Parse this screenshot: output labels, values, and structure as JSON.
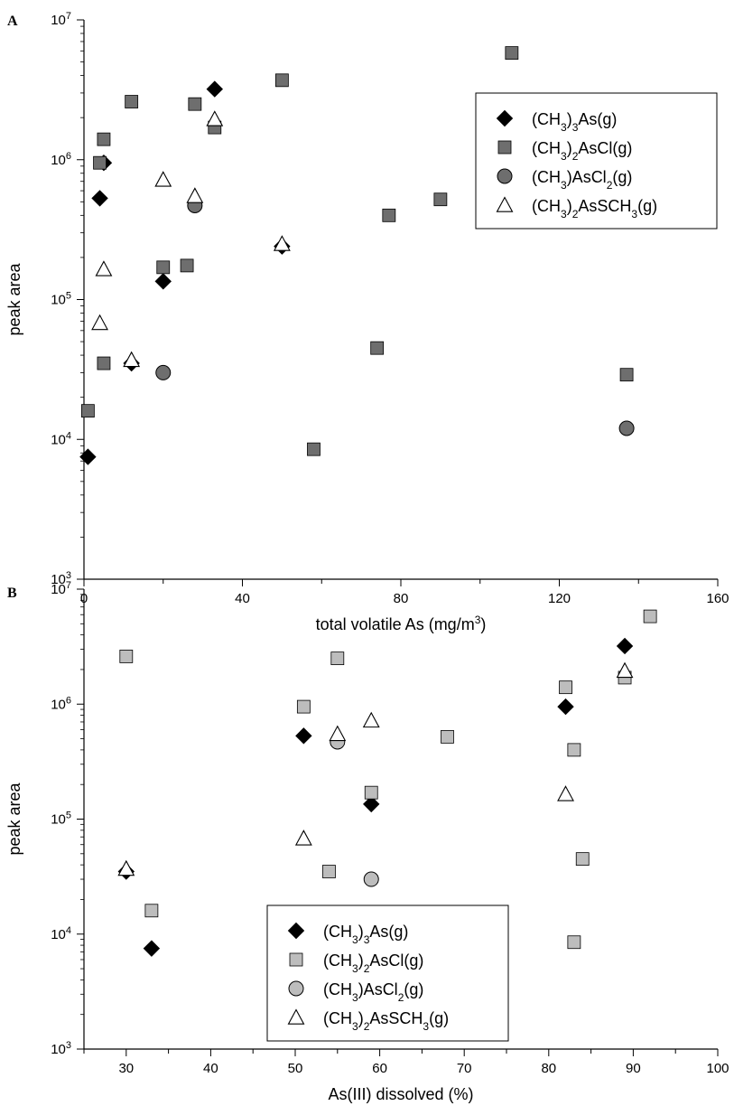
{
  "chart_data": [
    {
      "type": "scatter",
      "panel_label": "A",
      "xlabel": "total volatile As (mg/m",
      "xlabel_sup": "3",
      "xlabel_end": ")",
      "ylabel": "peak area",
      "x_scale": "linear",
      "y_scale": "log",
      "xlim": [
        0,
        160
      ],
      "ylim": [
        1000,
        10000000
      ],
      "x_ticks": [
        0,
        40,
        80,
        120,
        160
      ],
      "x_minor_step": 20,
      "y_tick_labels": [
        {
          "base": "10",
          "exp": "3"
        },
        {
          "base": "10",
          "exp": "4"
        },
        {
          "base": "10",
          "exp": "5"
        },
        {
          "base": "10",
          "exp": "6"
        },
        {
          "base": "10",
          "exp": "7"
        }
      ],
      "grid": false,
      "legend_position": "top-right",
      "series": [
        {
          "marker": "diamond",
          "color": "#000000",
          "legend": [
            {
              "t": "(CH"
            },
            {
              "t": "3",
              "sub": true
            },
            {
              "t": ")"
            },
            {
              "t": "3",
              "sub": true
            },
            {
              "t": "As(g)"
            }
          ],
          "points": [
            [
              1,
              7500
            ],
            [
              4,
              530000
            ],
            [
              5,
              950000
            ],
            [
              12,
              35000
            ],
            [
              20,
              135000
            ],
            [
              33,
              3200000
            ],
            [
              50,
              240000
            ]
          ]
        },
        {
          "marker": "square",
          "color": "#6e6e6e",
          "legend": [
            {
              "t": "(CH"
            },
            {
              "t": "3",
              "sub": true
            },
            {
              "t": ")"
            },
            {
              "t": "2",
              "sub": true
            },
            {
              "t": "AsCl(g)"
            }
          ],
          "points": [
            [
              1,
              16000
            ],
            [
              4,
              950000
            ],
            [
              5,
              1400000
            ],
            [
              5,
              35000
            ],
            [
              12,
              2600000
            ],
            [
              20,
              170000
            ],
            [
              26,
              175000
            ],
            [
              28,
              2500000
            ],
            [
              33,
              1700000
            ],
            [
              50,
              3700000
            ],
            [
              58,
              8500
            ],
            [
              74,
              45000
            ],
            [
              77,
              400000
            ],
            [
              90,
              520000
            ],
            [
              108,
              5800000
            ],
            [
              137,
              29000
            ]
          ]
        },
        {
          "marker": "circle",
          "color": "#6e6e6e",
          "legend": [
            {
              "t": "(CH"
            },
            {
              "t": "3",
              "sub": true
            },
            {
              "t": ")AsCl"
            },
            {
              "t": "2",
              "sub": true
            },
            {
              "t": "(g)"
            }
          ],
          "points": [
            [
              20,
              30000
            ],
            [
              28,
              470000
            ],
            [
              137,
              12000
            ]
          ]
        },
        {
          "marker": "triangle",
          "color": "#ffffff",
          "legend": [
            {
              "t": "(CH"
            },
            {
              "t": "3",
              "sub": true
            },
            {
              "t": ")"
            },
            {
              "t": "2",
              "sub": true
            },
            {
              "t": "AsSCH"
            },
            {
              "t": "3",
              "sub": true
            },
            {
              "t": "(g)"
            }
          ],
          "points": [
            [
              4,
              68000
            ],
            [
              5,
              165000
            ],
            [
              12,
              37000
            ],
            [
              20,
              720000
            ],
            [
              28,
              550000
            ],
            [
              33,
              1950000
            ],
            [
              50,
              250000
            ]
          ]
        }
      ]
    },
    {
      "type": "scatter",
      "panel_label": "B",
      "xlabel": "As(III) dissolved (%)",
      "xlabel_sup": "",
      "xlabel_end": "",
      "ylabel": "peak area",
      "x_scale": "linear",
      "y_scale": "log",
      "xlim": [
        25,
        100
      ],
      "ylim": [
        1000,
        10000000
      ],
      "x_ticks": [
        30,
        40,
        50,
        60,
        70,
        80,
        90,
        100
      ],
      "x_minor_step": 5,
      "y_tick_labels": [
        {
          "base": "10",
          "exp": "3"
        },
        {
          "base": "10",
          "exp": "4"
        },
        {
          "base": "10",
          "exp": "5"
        },
        {
          "base": "10",
          "exp": "6"
        },
        {
          "base": "10",
          "exp": "7"
        }
      ],
      "grid": false,
      "legend_position": "bottom-center",
      "series": [
        {
          "marker": "diamond",
          "color": "#000000",
          "legend": [
            {
              "t": "(CH"
            },
            {
              "t": "3",
              "sub": true
            },
            {
              "t": ")"
            },
            {
              "t": "3",
              "sub": true
            },
            {
              "t": "As(g)"
            }
          ],
          "points": [
            [
              30,
              35000
            ],
            [
              33,
              7500
            ],
            [
              51,
              530000
            ],
            [
              59,
              135000
            ],
            [
              82,
              950000
            ],
            [
              89,
              3200000
            ]
          ]
        },
        {
          "marker": "square",
          "color": "#bdbdbd",
          "legend": [
            {
              "t": "(CH"
            },
            {
              "t": "3",
              "sub": true
            },
            {
              "t": ")"
            },
            {
              "t": "2",
              "sub": true
            },
            {
              "t": "AsCl(g)"
            }
          ],
          "points": [
            [
              30,
              2600000
            ],
            [
              33,
              16000
            ],
            [
              51,
              950000
            ],
            [
              54,
              35000
            ],
            [
              55,
              2500000
            ],
            [
              59,
              170000
            ],
            [
              68,
              520000
            ],
            [
              82,
              1400000
            ],
            [
              83,
              400000
            ],
            [
              83,
              8500
            ],
            [
              84,
              45000
            ],
            [
              89,
              1700000
            ],
            [
              92,
              5800000
            ]
          ]
        },
        {
          "marker": "circle",
          "color": "#bdbdbd",
          "legend": [
            {
              "t": "(CH"
            },
            {
              "t": "3",
              "sub": true
            },
            {
              "t": ")AsCl"
            },
            {
              "t": "2",
              "sub": true
            },
            {
              "t": "(g)"
            }
          ],
          "points": [
            [
              55,
              470000
            ],
            [
              59,
              30000
            ]
          ]
        },
        {
          "marker": "triangle",
          "color": "#ffffff",
          "legend": [
            {
              "t": "(CH"
            },
            {
              "t": "3",
              "sub": true
            },
            {
              "t": ")"
            },
            {
              "t": "2",
              "sub": true
            },
            {
              "t": "AsSCH"
            },
            {
              "t": "3",
              "sub": true
            },
            {
              "t": "(g)"
            }
          ],
          "points": [
            [
              30,
              37000
            ],
            [
              51,
              68000
            ],
            [
              55,
              550000
            ],
            [
              59,
              720000
            ],
            [
              82,
              165000
            ],
            [
              89,
              1950000
            ]
          ]
        }
      ]
    }
  ]
}
